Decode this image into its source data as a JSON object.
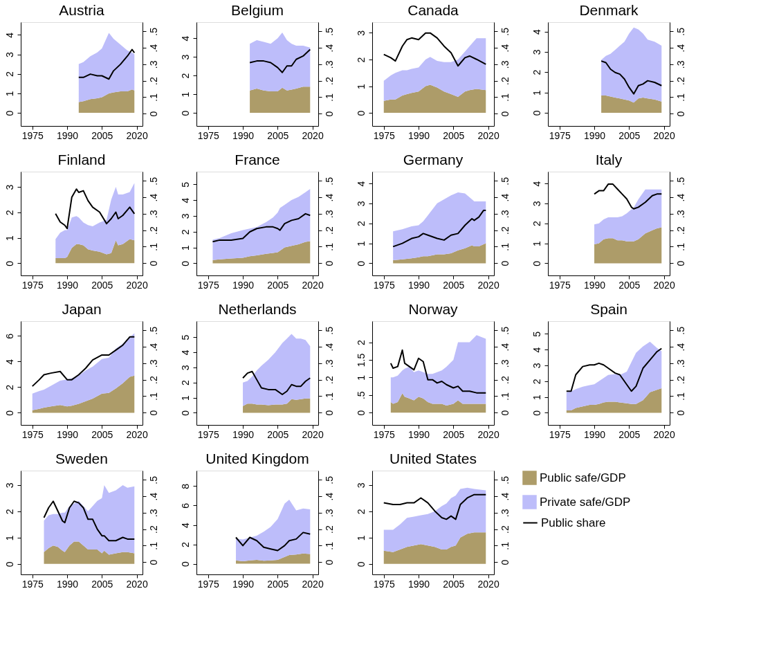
{
  "chart_data": [
    {
      "type": "area",
      "title": "Austria",
      "stacked": true,
      "x": [
        1995,
        1997,
        2000,
        2003,
        2005,
        2008,
        2010,
        2013,
        2016,
        2018,
        2019
      ],
      "xlim": [
        1970,
        2022.5
      ],
      "xticks": [
        1975,
        1990,
        2005,
        2020
      ],
      "ylim": [
        -0.67,
        4.65
      ],
      "yticks": [
        0,
        1,
        2,
        3,
        4
      ],
      "y2lim": [
        -0.075,
        0.556
      ],
      "y2ticks": [
        0,
        {
          "value": 0.1,
          "label": ".1"
        },
        {
          "value": 0.2,
          "label": ".2"
        },
        {
          "value": 0.3,
          "label": ".3"
        },
        {
          "value": 0.4,
          "label": ".4"
        },
        {
          "value": 0.5,
          "label": ".5"
        }
      ],
      "series": [
        {
          "color": "#ad9c69",
          "values": [
            0.55,
            0.6,
            0.7,
            0.75,
            0.8,
            1.0,
            1.05,
            1.1,
            1.1,
            1.2,
            1.15
          ]
        },
        {
          "color": "#bdbdfa",
          "values": [
            1.95,
            2.0,
            2.2,
            2.35,
            2.5,
            3.1,
            2.75,
            2.4,
            2.1,
            1.9,
            1.85
          ]
        },
        {
          "type": "line",
          "axis": "y2",
          "color": "#000000",
          "values": [
            0.22,
            0.22,
            0.24,
            0.23,
            0.23,
            0.21,
            0.26,
            0.3,
            0.35,
            0.39,
            0.37
          ]
        }
      ]
    },
    {
      "type": "area",
      "title": "Belgium",
      "stacked": true,
      "x": [
        1993,
        1996,
        1999,
        2002,
        2005,
        2007,
        2009,
        2011,
        2013,
        2016,
        2019
      ],
      "xlim": [
        1970,
        2022.5
      ],
      "xticks": [
        1975,
        1990,
        2005,
        2020
      ],
      "ylim": [
        -0.7,
        4.86
      ],
      "yticks": [
        0,
        1,
        2,
        3,
        4
      ],
      "y2lim": [
        -0.075,
        0.556
      ],
      "y2ticks": [
        0,
        {
          "value": 0.1,
          "label": ".1"
        },
        {
          "value": 0.2,
          "label": ".2"
        },
        {
          "value": 0.3,
          "label": ".3"
        },
        {
          "value": 0.4,
          "label": ".4"
        },
        {
          "value": 0.5,
          "label": ".5"
        }
      ],
      "series": [
        {
          "color": "#ad9c69",
          "values": [
            1.2,
            1.3,
            1.2,
            1.15,
            1.15,
            1.35,
            1.2,
            1.25,
            1.3,
            1.4,
            1.4
          ]
        },
        {
          "color": "#bdbdfa",
          "values": [
            2.5,
            2.6,
            2.6,
            2.55,
            2.85,
            2.95,
            2.7,
            2.45,
            2.3,
            2.2,
            2.1
          ]
        },
        {
          "type": "line",
          "axis": "y2",
          "color": "#000000",
          "values": [
            0.31,
            0.32,
            0.32,
            0.31,
            0.28,
            0.25,
            0.29,
            0.29,
            0.33,
            0.35,
            0.39
          ]
        }
      ]
    },
    {
      "type": "area",
      "title": "Canada",
      "stacked": true,
      "x": [
        1975,
        1978,
        1980,
        1983,
        1985,
        1987,
        1990,
        1993,
        1995,
        1998,
        2001,
        2004,
        2007,
        2010,
        2012,
        2015,
        2019
      ],
      "xlim": [
        1970,
        2022.5
      ],
      "xticks": [
        1975,
        1990,
        2005,
        2020
      ],
      "ylim": [
        -0.49,
        3.4
      ],
      "yticks": [
        0,
        1,
        2,
        3
      ],
      "y2lim": [
        -0.075,
        0.556
      ],
      "y2ticks": [
        0,
        {
          "value": 0.1,
          "label": ".1"
        },
        {
          "value": 0.2,
          "label": ".2"
        },
        {
          "value": 0.3,
          "label": ".3"
        },
        {
          "value": 0.4,
          "label": ".4"
        },
        {
          "value": 0.5,
          "label": ".5"
        }
      ],
      "series": [
        {
          "color": "#ad9c69",
          "values": [
            0.45,
            0.5,
            0.5,
            0.65,
            0.7,
            0.75,
            0.8,
            1.0,
            1.05,
            0.95,
            0.8,
            0.7,
            0.6,
            0.8,
            0.85,
            0.9,
            0.85
          ]
        },
        {
          "color": "#bdbdfa",
          "values": [
            0.75,
            0.9,
            1.0,
            0.95,
            0.9,
            0.9,
            0.9,
            1.0,
            1.05,
            1.0,
            1.1,
            1.2,
            1.4,
            1.5,
            1.65,
            1.9,
            1.95
          ]
        },
        {
          "type": "line",
          "axis": "y2",
          "color": "#000000",
          "values": [
            0.36,
            0.34,
            0.32,
            0.41,
            0.45,
            0.46,
            0.45,
            0.49,
            0.49,
            0.46,
            0.41,
            0.37,
            0.29,
            0.34,
            0.35,
            0.33,
            0.3
          ]
        }
      ]
    },
    {
      "type": "area",
      "title": "Denmark",
      "stacked": true,
      "x": [
        1993,
        1995,
        1997,
        1999,
        2001,
        2003,
        2005,
        2007,
        2009,
        2011,
        2013,
        2016,
        2019
      ],
      "xlim": [
        1970,
        2022.5
      ],
      "xticks": [
        1975,
        1990,
        2005,
        2020
      ],
      "ylim": [
        -0.65,
        4.46
      ],
      "yticks": [
        0,
        1,
        2,
        3,
        4
      ],
      "y2lim": [
        -0.075,
        0.556
      ],
      "y2ticks": [
        0,
        {
          "value": 0.1,
          "label": ".1"
        },
        {
          "value": 0.2,
          "label": ".2"
        },
        {
          "value": 0.3,
          "label": ".3"
        },
        {
          "value": 0.4,
          "label": ".4"
        },
        {
          "value": 0.5,
          "label": ".5"
        }
      ],
      "series": [
        {
          "color": "#ad9c69",
          "values": [
            0.85,
            0.85,
            0.8,
            0.75,
            0.7,
            0.65,
            0.6,
            0.5,
            0.7,
            0.75,
            0.7,
            0.65,
            0.55
          ]
        },
        {
          "color": "#bdbdfa",
          "values": [
            1.75,
            1.95,
            2.1,
            2.35,
            2.6,
            2.85,
            3.3,
            3.7,
            3.4,
            3.15,
            2.9,
            2.85,
            2.75
          ]
        },
        {
          "type": "line",
          "axis": "y2",
          "color": "#000000",
          "values": [
            0.32,
            0.31,
            0.27,
            0.25,
            0.24,
            0.21,
            0.16,
            0.12,
            0.17,
            0.18,
            0.2,
            0.19,
            0.17
          ]
        }
      ]
    },
    {
      "type": "area",
      "title": "Finland",
      "stacked": true,
      "x": [
        1985,
        1987,
        1989,
        1990,
        1992,
        1994,
        1995,
        1997,
        1999,
        2001,
        2004,
        2007,
        2009,
        2011,
        2012,
        2014,
        2017,
        2019
      ],
      "xlim": [
        1970,
        2022.5
      ],
      "xticks": [
        1975,
        1990,
        2005,
        2020
      ],
      "ylim": [
        -0.48,
        3.6
      ],
      "yticks": [
        0,
        1,
        2,
        3
      ],
      "y2lim": [
        -0.075,
        0.556
      ],
      "y2ticks": [
        0,
        {
          "value": 0.1,
          "label": ".1"
        },
        {
          "value": 0.2,
          "label": ".2"
        },
        {
          "value": 0.3,
          "label": ".3"
        },
        {
          "value": 0.4,
          "label": ".4"
        },
        {
          "value": 0.5,
          "label": ".5"
        }
      ],
      "series": [
        {
          "color": "#ad9c69",
          "values": [
            0.2,
            0.2,
            0.2,
            0.25,
            0.6,
            0.75,
            0.75,
            0.7,
            0.55,
            0.5,
            0.45,
            0.35,
            0.4,
            0.9,
            0.7,
            0.75,
            0.95,
            0.9
          ]
        },
        {
          "color": "#bdbdfa",
          "values": [
            0.75,
            1.0,
            1.1,
            1.05,
            1.2,
            1.1,
            1.05,
            0.9,
            0.95,
            0.95,
            1.15,
            1.35,
            2.1,
            2.1,
            2.0,
            1.95,
            1.85,
            2.25
          ]
        },
        {
          "type": "line",
          "axis": "y2",
          "color": "#000000",
          "values": [
            0.3,
            0.25,
            0.23,
            0.21,
            0.4,
            0.45,
            0.43,
            0.44,
            0.38,
            0.34,
            0.31,
            0.24,
            0.27,
            0.31,
            0.27,
            0.29,
            0.34,
            0.3
          ]
        }
      ]
    },
    {
      "type": "area",
      "title": "France",
      "stacked": true,
      "x": [
        1977,
        1980,
        1985,
        1990,
        1993,
        1996,
        2000,
        2003,
        2005,
        2006,
        2008,
        2011,
        2014,
        2017,
        2019
      ],
      "xlim": [
        1970,
        2022.5
      ],
      "xticks": [
        1975,
        1990,
        2005,
        2020
      ],
      "ylim": [
        -0.77,
        5.8
      ],
      "yticks": [
        0,
        1,
        2,
        3,
        4,
        5
      ],
      "y2lim": [
        -0.075,
        0.556
      ],
      "y2ticks": [
        0,
        {
          "value": 0.1,
          "label": ".1"
        },
        {
          "value": 0.2,
          "label": ".2"
        },
        {
          "value": 0.3,
          "label": ".3"
        },
        {
          "value": 0.4,
          "label": ".4"
        },
        {
          "value": 0.5,
          "label": ".5"
        }
      ],
      "series": [
        {
          "color": "#ad9c69",
          "values": [
            0.2,
            0.25,
            0.3,
            0.35,
            0.45,
            0.5,
            0.6,
            0.65,
            0.7,
            0.8,
            1.0,
            1.1,
            1.2,
            1.35,
            1.4
          ]
        },
        {
          "color": "#bdbdfa",
          "values": [
            1.3,
            1.35,
            1.6,
            1.75,
            1.75,
            1.8,
            2.0,
            2.25,
            2.5,
            2.7,
            2.7,
            2.9,
            3.0,
            3.15,
            3.3
          ]
        },
        {
          "type": "line",
          "axis": "y2",
          "color": "#000000",
          "values": [
            0.13,
            0.14,
            0.14,
            0.15,
            0.19,
            0.21,
            0.22,
            0.22,
            0.21,
            0.2,
            0.24,
            0.26,
            0.27,
            0.3,
            0.29
          ]
        }
      ]
    },
    {
      "type": "area",
      "title": "Germany",
      "stacked": true,
      "x": [
        1979,
        1983,
        1987,
        1990,
        1992,
        1994,
        1998,
        2001,
        2004,
        2007,
        2010,
        2013,
        2014,
        2016,
        2018,
        2019
      ],
      "xlim": [
        1970,
        2022.5
      ],
      "xticks": [
        1975,
        1990,
        2005,
        2020
      ],
      "ylim": [
        -0.61,
        4.59
      ],
      "yticks": [
        0,
        1,
        2,
        3,
        4
      ],
      "y2lim": [
        -0.075,
        0.556
      ],
      "y2ticks": [
        0,
        {
          "value": 0.1,
          "label": ".1"
        },
        {
          "value": 0.2,
          "label": ".2"
        },
        {
          "value": 0.3,
          "label": ".3"
        },
        {
          "value": 0.4,
          "label": ".4"
        },
        {
          "value": 0.5,
          "label": ".5"
        }
      ],
      "series": [
        {
          "color": "#ad9c69",
          "values": [
            0.15,
            0.2,
            0.25,
            0.3,
            0.35,
            0.35,
            0.45,
            0.45,
            0.5,
            0.65,
            0.75,
            0.9,
            0.85,
            0.85,
            0.95,
            1.0
          ]
        },
        {
          "color": "#bdbdfa",
          "values": [
            1.45,
            1.5,
            1.6,
            1.6,
            1.75,
            2.05,
            2.55,
            2.75,
            2.9,
            2.9,
            2.75,
            2.3,
            2.25,
            2.25,
            2.15,
            2.1
          ]
        },
        {
          "type": "line",
          "axis": "y2",
          "color": "#000000",
          "values": [
            0.1,
            0.12,
            0.15,
            0.16,
            0.18,
            0.17,
            0.15,
            0.14,
            0.17,
            0.18,
            0.23,
            0.27,
            0.26,
            0.28,
            0.32,
            0.32
          ]
        }
      ]
    },
    {
      "type": "area",
      "title": "Italy",
      "stacked": true,
      "x": [
        1990,
        1992,
        1994,
        1996,
        1998,
        2000,
        2002,
        2004,
        2006,
        2007,
        2009,
        2012,
        2015,
        2017,
        2019
      ],
      "xlim": [
        1970,
        2022.5
      ],
      "xticks": [
        1975,
        1990,
        2005,
        2020
      ],
      "ylim": [
        -0.61,
        4.59
      ],
      "yticks": [
        0,
        1,
        2,
        3,
        4
      ],
      "y2lim": [
        -0.075,
        0.556
      ],
      "y2ticks": [
        0,
        {
          "value": 0.1,
          "label": ".1"
        },
        {
          "value": 0.2,
          "label": ".2"
        },
        {
          "value": 0.3,
          "label": ".3"
        },
        {
          "value": 0.4,
          "label": ".4"
        },
        {
          "value": 0.5,
          "label": ".5"
        }
      ],
      "series": [
        {
          "color": "#ad9c69",
          "values": [
            0.95,
            1.0,
            1.2,
            1.25,
            1.25,
            1.15,
            1.15,
            1.1,
            1.1,
            1.1,
            1.2,
            1.5,
            1.65,
            1.75,
            1.8
          ]
        },
        {
          "color": "#bdbdfa",
          "values": [
            1.0,
            1.0,
            1.0,
            1.05,
            1.05,
            1.15,
            1.2,
            1.4,
            1.6,
            1.7,
            2.0,
            2.2,
            2.05,
            1.95,
            1.9
          ]
        },
        {
          "type": "line",
          "axis": "y2",
          "color": "#000000",
          "values": [
            0.42,
            0.44,
            0.44,
            0.48,
            0.48,
            0.45,
            0.42,
            0.39,
            0.34,
            0.33,
            0.34,
            0.37,
            0.41,
            0.42,
            0.42
          ]
        }
      ]
    },
    {
      "type": "area",
      "title": "Japan",
      "stacked": true,
      "x": [
        1975,
        1978,
        1980,
        1983,
        1987,
        1990,
        1992,
        1995,
        1998,
        2001,
        2005,
        2008,
        2011,
        2014,
        2017,
        2019
      ],
      "xlim": [
        1970,
        2022.5
      ],
      "xticks": [
        1975,
        1990,
        2005,
        2020
      ],
      "ylim": [
        -0.95,
        7.15
      ],
      "yticks": [
        0,
        2,
        4,
        6
      ],
      "y2lim": [
        -0.075,
        0.556
      ],
      "y2ticks": [
        0,
        {
          "value": 0.1,
          "label": ".1"
        },
        {
          "value": 0.2,
          "label": ".2"
        },
        {
          "value": 0.3,
          "label": ".3"
        },
        {
          "value": 0.4,
          "label": ".4"
        },
        {
          "value": 0.5,
          "label": ".5"
        }
      ],
      "series": [
        {
          "color": "#ad9c69",
          "values": [
            0.2,
            0.3,
            0.4,
            0.5,
            0.6,
            0.5,
            0.55,
            0.7,
            0.9,
            1.1,
            1.5,
            1.55,
            1.9,
            2.3,
            2.8,
            2.9
          ]
        },
        {
          "color": "#bdbdfa",
          "values": [
            1.3,
            1.4,
            1.4,
            1.6,
            1.9,
            2.1,
            2.15,
            2.2,
            2.4,
            2.5,
            2.7,
            2.75,
            3.1,
            3.1,
            3.1,
            3.3
          ]
        },
        {
          "type": "line",
          "axis": "y2",
          "color": "#000000",
          "values": [
            0.16,
            0.2,
            0.23,
            0.24,
            0.25,
            0.2,
            0.2,
            0.23,
            0.27,
            0.32,
            0.35,
            0.35,
            0.38,
            0.41,
            0.46,
            0.46
          ]
        }
      ]
    },
    {
      "type": "area",
      "title": "Netherlands",
      "stacked": true,
      "x": [
        1990,
        1992,
        1994,
        1996,
        1998,
        2001,
        2004,
        2007,
        2009,
        2011,
        2013,
        2015,
        2017,
        2019
      ],
      "xlim": [
        1970,
        2022.5
      ],
      "xticks": [
        1975,
        1990,
        2005,
        2020
      ],
      "ylim": [
        -0.8,
        6.05
      ],
      "yticks": [
        0,
        1,
        2,
        3,
        4,
        5
      ],
      "y2lim": [
        -0.075,
        0.556
      ],
      "y2ticks": [
        0,
        {
          "value": 0.1,
          "label": ".1"
        },
        {
          "value": 0.2,
          "label": ".2"
        },
        {
          "value": 0.3,
          "label": ".3"
        },
        {
          "value": 0.4,
          "label": ".4"
        },
        {
          "value": 0.5,
          "label": ".5"
        }
      ],
      "series": [
        {
          "color": "#ad9c69",
          "values": [
            0.45,
            0.6,
            0.6,
            0.55,
            0.55,
            0.5,
            0.55,
            0.55,
            0.6,
            0.9,
            0.85,
            0.9,
            0.95,
            0.95
          ]
        },
        {
          "color": "#bdbdfa",
          "values": [
            1.55,
            1.5,
            1.8,
            2.25,
            2.55,
            3.0,
            3.45,
            4.05,
            4.3,
            4.3,
            4.05,
            4.0,
            3.85,
            3.45
          ]
        },
        {
          "type": "line",
          "axis": "y2",
          "color": "#000000",
          "values": [
            0.21,
            0.24,
            0.25,
            0.2,
            0.15,
            0.14,
            0.14,
            0.11,
            0.13,
            0.17,
            0.16,
            0.16,
            0.19,
            0.21
          ]
        }
      ]
    },
    {
      "type": "area",
      "title": "Norway",
      "stacked": true,
      "x": [
        1978,
        1979,
        1981,
        1983,
        1984,
        1986,
        1988,
        1990,
        1992,
        1994,
        1996,
        1998,
        2000,
        2002,
        2005,
        2007,
        2009,
        2012,
        2015,
        2019
      ],
      "xlim": [
        1970,
        2022.5
      ],
      "xticks": [
        1975,
        1990,
        2005,
        2020
      ],
      "ylim": [
        -0.35,
        2.6
      ],
      "yticks": [
        0,
        {
          "value": 0.5,
          "label": ".5"
        },
        1,
        1.5,
        2
      ],
      "y2lim": [
        -0.075,
        0.556
      ],
      "y2ticks": [
        0,
        {
          "value": 0.1,
          "label": ".1"
        },
        {
          "value": 0.2,
          "label": ".2"
        },
        {
          "value": 0.3,
          "label": ".3"
        },
        {
          "value": 0.4,
          "label": ".4"
        },
        {
          "value": 0.5,
          "label": ".5"
        }
      ],
      "series": [
        {
          "color": "#ad9c69",
          "values": [
            0.3,
            0.25,
            0.3,
            0.55,
            0.45,
            0.4,
            0.35,
            0.45,
            0.4,
            0.3,
            0.25,
            0.25,
            0.25,
            0.2,
            0.25,
            0.35,
            0.25,
            0.25,
            0.25,
            0.25
          ]
        },
        {
          "color": "#bdbdfa",
          "values": [
            0.7,
            0.75,
            0.75,
            0.65,
            0.8,
            0.9,
            0.8,
            0.75,
            0.75,
            0.8,
            0.85,
            0.9,
            0.95,
            1.1,
            1.25,
            1.65,
            1.75,
            1.75,
            1.95,
            1.85
          ]
        },
        {
          "type": "line",
          "axis": "y2",
          "color": "#000000",
          "values": [
            0.3,
            0.27,
            0.28,
            0.38,
            0.3,
            0.28,
            0.26,
            0.33,
            0.31,
            0.2,
            0.2,
            0.18,
            0.19,
            0.17,
            0.15,
            0.16,
            0.13,
            0.13,
            0.12,
            0.12
          ]
        }
      ]
    },
    {
      "type": "area",
      "title": "Spain",
      "stacked": true,
      "x": [
        1978,
        1980,
        1982,
        1985,
        1988,
        1990,
        1992,
        1994,
        1996,
        1999,
        2001,
        2004,
        2006,
        2008,
        2011,
        2014,
        2017,
        2019
      ],
      "xlim": [
        1970,
        2022.5
      ],
      "xticks": [
        1975,
        1990,
        2005,
        2020
      ],
      "ylim": [
        -0.77,
        5.8
      ],
      "yticks": [
        0,
        1,
        2,
        3,
        4,
        5
      ],
      "y2lim": [
        -0.075,
        0.556
      ],
      "y2ticks": [
        0,
        {
          "value": 0.1,
          "label": ".1"
        },
        {
          "value": 0.2,
          "label": ".2"
        },
        {
          "value": 0.3,
          "label": ".3"
        },
        {
          "value": 0.4,
          "label": ".4"
        },
        {
          "value": 0.5,
          "label": ".5"
        }
      ],
      "series": [
        {
          "color": "#ad9c69",
          "values": [
            0.15,
            0.15,
            0.3,
            0.4,
            0.5,
            0.5,
            0.55,
            0.65,
            0.7,
            0.7,
            0.65,
            0.6,
            0.55,
            0.55,
            0.8,
            1.3,
            1.45,
            1.55
          ]
        },
        {
          "color": "#bdbdfa",
          "values": [
            1.15,
            1.2,
            1.2,
            1.25,
            1.25,
            1.3,
            1.45,
            1.55,
            1.7,
            1.75,
            1.75,
            2.0,
            2.65,
            3.25,
            3.4,
            3.2,
            2.65,
            2.35
          ]
        },
        {
          "type": "line",
          "axis": "y2",
          "color": "#000000",
          "values": [
            0.13,
            0.13,
            0.23,
            0.28,
            0.29,
            0.29,
            0.3,
            0.29,
            0.27,
            0.24,
            0.23,
            0.17,
            0.13,
            0.16,
            0.27,
            0.32,
            0.37,
            0.39
          ]
        }
      ]
    },
    {
      "type": "area",
      "title": "Sweden",
      "stacked": true,
      "x": [
        1980,
        1982,
        1984,
        1986,
        1988,
        1989,
        1991,
        1993,
        1995,
        1997,
        1999,
        2001,
        2003,
        2005,
        2006,
        2008,
        2011,
        2014,
        2016,
        2019
      ],
      "xlim": [
        1970,
        2022.5
      ],
      "xticks": [
        1975,
        1990,
        2005,
        2020
      ],
      "ylim": [
        -0.4,
        3.55
      ],
      "yticks": [
        0,
        1,
        2,
        3
      ],
      "y2lim": [
        -0.075,
        0.556
      ],
      "y2ticks": [
        0,
        {
          "value": 0.1,
          "label": ".1"
        },
        {
          "value": 0.2,
          "label": ".2"
        },
        {
          "value": 0.3,
          "label": ".3"
        },
        {
          "value": 0.4,
          "label": ".4"
        },
        {
          "value": 0.5,
          "label": ".5"
        }
      ],
      "series": [
        {
          "color": "#ad9c69",
          "values": [
            0.45,
            0.6,
            0.7,
            0.65,
            0.5,
            0.45,
            0.7,
            0.85,
            0.85,
            0.7,
            0.55,
            0.55,
            0.55,
            0.4,
            0.5,
            0.35,
            0.4,
            0.45,
            0.45,
            0.4
          ]
        },
        {
          "color": "#bdbdfa",
          "values": [
            1.2,
            1.25,
            1.2,
            1.25,
            1.45,
            1.5,
            1.5,
            1.45,
            1.55,
            1.5,
            1.45,
            1.65,
            1.85,
            2.1,
            2.5,
            2.35,
            2.4,
            2.55,
            2.45,
            2.55
          ]
        },
        {
          "type": "line",
          "axis": "y2",
          "color": "#000000",
          "values": [
            0.27,
            0.33,
            0.37,
            0.31,
            0.25,
            0.24,
            0.33,
            0.37,
            0.36,
            0.33,
            0.26,
            0.26,
            0.2,
            0.16,
            0.16,
            0.13,
            0.13,
            0.15,
            0.14,
            0.14
          ]
        }
      ]
    },
    {
      "type": "area",
      "title": "United Kingdom",
      "stacked": true,
      "x": [
        1987,
        1990,
        1993,
        1996,
        1999,
        2002,
        2005,
        2008,
        2010,
        2013,
        2016,
        2019
      ],
      "xlim": [
        1970,
        2022.5
      ],
      "xticks": [
        1975,
        1990,
        2005,
        2020
      ],
      "ylim": [
        -1.1,
        9.6
      ],
      "yticks": [
        0,
        2,
        4,
        6,
        8
      ],
      "y2lim": [
        -0.075,
        0.556
      ],
      "y2ticks": [
        0,
        {
          "value": 0.1,
          "label": ".1"
        },
        {
          "value": 0.2,
          "label": ".2"
        },
        {
          "value": 0.3,
          "label": ".3"
        },
        {
          "value": 0.4,
          "label": ".4"
        },
        {
          "value": 0.5,
          "label": ".5"
        }
      ],
      "series": [
        {
          "color": "#ad9c69",
          "values": [
            0.35,
            0.25,
            0.35,
            0.4,
            0.3,
            0.35,
            0.4,
            0.7,
            0.9,
            0.95,
            1.05,
            1.0
          ]
        },
        {
          "color": "#bdbdfa",
          "values": [
            2.25,
            2.25,
            2.35,
            2.5,
            3.0,
            3.45,
            4.2,
            5.5,
            5.7,
            4.55,
            4.65,
            4.6
          ]
        },
        {
          "type": "line",
          "axis": "y2",
          "color": "#000000",
          "values": [
            0.15,
            0.1,
            0.15,
            0.13,
            0.09,
            0.08,
            0.07,
            0.1,
            0.13,
            0.14,
            0.18,
            0.17
          ]
        }
      ]
    },
    {
      "type": "area",
      "title": "United States",
      "stacked": true,
      "legend": "right",
      "x": [
        1975,
        1979,
        1982,
        1985,
        1988,
        1991,
        1994,
        1997,
        2000,
        2002,
        2004,
        2006,
        2008,
        2011,
        2014,
        2019
      ],
      "xlim": [
        1970,
        2022.5
      ],
      "xticks": [
        1975,
        1990,
        2005,
        2020
      ],
      "ylim": [
        -0.4,
        3.55
      ],
      "yticks": [
        0,
        1,
        2,
        3
      ],
      "y2lim": [
        -0.075,
        0.556
      ],
      "y2ticks": [
        0,
        {
          "value": 0.1,
          "label": ".1"
        },
        {
          "value": 0.2,
          "label": ".2"
        },
        {
          "value": 0.3,
          "label": ".3"
        },
        {
          "value": 0.4,
          "label": ".4"
        },
        {
          "value": 0.5,
          "label": ".5"
        }
      ],
      "series": [
        {
          "name": "Public safe/GDP",
          "color": "#ad9c69",
          "values": [
            0.5,
            0.45,
            0.55,
            0.65,
            0.7,
            0.75,
            0.7,
            0.65,
            0.55,
            0.55,
            0.65,
            0.7,
            1.0,
            1.15,
            1.2,
            1.2
          ]
        },
        {
          "name": "Private safe/GDP",
          "color": "#bdbdfa",
          "values": [
            0.8,
            0.85,
            0.95,
            1.1,
            1.1,
            1.1,
            1.2,
            1.35,
            1.65,
            1.75,
            1.85,
            1.9,
            1.85,
            1.75,
            1.65,
            1.6
          ]
        },
        {
          "name": "Public share",
          "type": "line",
          "axis": "y2",
          "color": "#000000",
          "values": [
            0.36,
            0.35,
            0.35,
            0.36,
            0.36,
            0.39,
            0.36,
            0.31,
            0.27,
            0.26,
            0.28,
            0.26,
            0.35,
            0.39,
            0.41,
            0.41
          ]
        }
      ]
    }
  ]
}
